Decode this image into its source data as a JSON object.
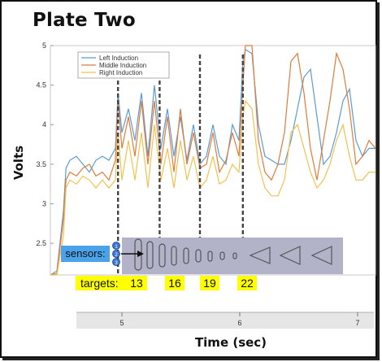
{
  "title": "Plate Two",
  "chart_data": {
    "type": "line",
    "xlabel": "Time (sec)",
    "ylabel": "Volts",
    "xticks": [
      "5",
      "6",
      "7"
    ],
    "yticks": [
      "2.5",
      "3",
      "3.5",
      "4",
      "4.5",
      "5"
    ],
    "xlim": [
      4.6,
      7.1
    ],
    "ylim": [
      2.1,
      5.0
    ],
    "legend_position": "top-left",
    "grid": false,
    "series": [
      {
        "name": "Left Induction",
        "color": "#5b9bd5",
        "x": [
          4.6,
          4.65,
          4.7,
          4.72,
          4.75,
          4.8,
          4.85,
          4.9,
          4.95,
          5.0,
          5.05,
          5.1,
          5.12,
          5.15,
          5.2,
          5.25,
          5.3,
          5.35,
          5.4,
          5.45,
          5.5,
          5.55,
          5.6,
          5.65,
          5.7,
          5.75,
          5.8,
          5.85,
          5.9,
          5.95,
          6.0,
          6.05,
          6.08,
          6.1,
          6.15,
          6.2,
          6.25,
          6.3,
          6.35,
          6.4,
          6.45,
          6.5,
          6.55,
          6.6,
          6.65,
          6.7,
          6.75,
          6.8,
          6.85,
          6.9,
          6.95,
          7.0,
          7.05,
          7.1
        ],
        "y": [
          2.1,
          2.15,
          2.9,
          3.45,
          3.55,
          3.6,
          3.5,
          3.4,
          3.55,
          3.6,
          3.55,
          3.7,
          4.4,
          3.9,
          4.2,
          3.8,
          4.4,
          3.6,
          4.5,
          3.7,
          4.2,
          3.6,
          4.1,
          3.55,
          4.0,
          3.5,
          3.6,
          4.0,
          3.6,
          3.5,
          4.0,
          3.8,
          4.8,
          4.95,
          4.9,
          4.0,
          3.6,
          3.55,
          3.5,
          3.5,
          3.8,
          4.2,
          4.6,
          4.7,
          4.1,
          3.5,
          3.6,
          3.9,
          4.3,
          4.45,
          3.8,
          3.6,
          3.7,
          3.7
        ]
      },
      {
        "name": "Middle Induction",
        "color": "#e07b39",
        "x": [
          4.6,
          4.65,
          4.7,
          4.72,
          4.75,
          4.8,
          4.85,
          4.9,
          4.95,
          5.0,
          5.05,
          5.1,
          5.12,
          5.15,
          5.2,
          5.25,
          5.3,
          5.35,
          5.4,
          5.45,
          5.5,
          5.55,
          5.6,
          5.65,
          5.7,
          5.75,
          5.8,
          5.85,
          5.9,
          5.95,
          6.0,
          6.05,
          6.08,
          6.1,
          6.15,
          6.2,
          6.25,
          6.3,
          6.35,
          6.4,
          6.45,
          6.5,
          6.55,
          6.6,
          6.65,
          6.7,
          6.75,
          6.8,
          6.85,
          6.9,
          6.95,
          7.0,
          7.05,
          7.1
        ],
        "y": [
          2.1,
          2.12,
          2.8,
          3.3,
          3.4,
          3.35,
          3.45,
          3.5,
          3.35,
          3.4,
          3.3,
          3.55,
          4.3,
          3.7,
          4.1,
          3.6,
          4.3,
          3.5,
          4.3,
          3.5,
          4.1,
          3.4,
          4.2,
          3.5,
          3.9,
          3.45,
          3.5,
          3.9,
          3.4,
          3.55,
          3.9,
          3.6,
          4.5,
          5.0,
          5.0,
          3.8,
          3.4,
          3.3,
          3.5,
          3.9,
          4.8,
          4.9,
          4.4,
          3.7,
          3.3,
          3.8,
          4.3,
          4.9,
          4.7,
          4.2,
          3.5,
          3.6,
          3.8,
          3.7
        ]
      },
      {
        "name": "Right Induction",
        "color": "#f2c14e",
        "x": [
          4.6,
          4.65,
          4.7,
          4.72,
          4.75,
          4.8,
          4.85,
          4.9,
          4.95,
          5.0,
          5.05,
          5.1,
          5.12,
          5.15,
          5.2,
          5.25,
          5.3,
          5.35,
          5.4,
          5.45,
          5.5,
          5.55,
          5.6,
          5.65,
          5.7,
          5.75,
          5.8,
          5.85,
          5.9,
          5.95,
          6.0,
          6.05,
          6.08,
          6.1,
          6.15,
          6.2,
          6.25,
          6.3,
          6.35,
          6.4,
          6.45,
          6.5,
          6.55,
          6.6,
          6.65,
          6.7,
          6.75,
          6.8,
          6.85,
          6.9,
          6.95,
          7.0,
          7.05,
          7.1
        ],
        "y": [
          2.1,
          2.1,
          2.6,
          3.2,
          3.3,
          3.25,
          3.35,
          3.3,
          3.2,
          3.3,
          3.2,
          3.3,
          3.9,
          3.3,
          3.8,
          3.3,
          3.9,
          3.2,
          4.0,
          3.3,
          3.7,
          3.2,
          3.8,
          3.3,
          3.6,
          3.2,
          3.3,
          3.6,
          3.25,
          3.3,
          3.5,
          3.4,
          4.1,
          4.3,
          4.2,
          3.5,
          3.2,
          3.1,
          3.1,
          3.3,
          3.9,
          4.0,
          3.7,
          3.4,
          3.2,
          3.3,
          3.5,
          3.8,
          4.0,
          3.6,
          3.3,
          3.3,
          3.4,
          3.4
        ]
      }
    ],
    "target_lines_x": [
      5.12,
      5.44,
      5.75,
      6.08
    ],
    "sensors": {
      "label": "sensors:",
      "numbers": [
        "1",
        "2",
        "3"
      ]
    },
    "targets": {
      "label": "targets:",
      "values": [
        "13",
        "16",
        "19",
        "22"
      ]
    }
  }
}
